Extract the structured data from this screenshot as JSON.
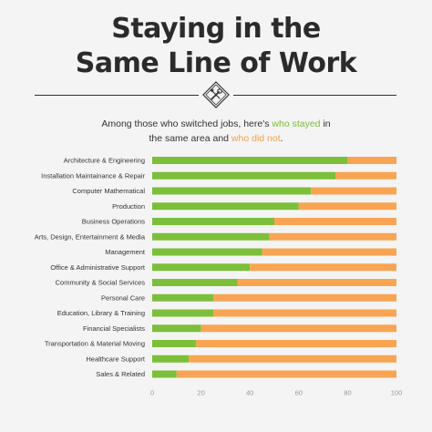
{
  "header": {
    "title_line1": "Staying in the",
    "title_line2": "Same Line of Work"
  },
  "subtitle": {
    "part1": "Among those who switched jobs, here's ",
    "stayed": "who stayed",
    "part2": " in",
    "part3": "the same area and ",
    "did_not": "who did not",
    "part4": "."
  },
  "icon": {
    "name": "tools-icon"
  },
  "colors": {
    "stayed": "#7cbf3a",
    "did_not": "#f9a453"
  },
  "chart_data": {
    "type": "bar",
    "orientation": "horizontal",
    "stacked": true,
    "categories": [
      "Architecture & Engineering",
      "Installation Maintainance & Repair",
      "Computer Mathematical",
      "Production",
      "Business Operations",
      "Arts, Design, Entertainment & Media",
      "Management",
      "Office & Administrative Support",
      "Community & Social Services",
      "Personal Care",
      "Education, Library & Training",
      "Financial Specialists",
      "Transportation & Material Moving",
      "Healthcare Support",
      "Sales & Related"
    ],
    "series": [
      {
        "name": "who stayed",
        "values": [
          80,
          75,
          65,
          60,
          50,
          48,
          45,
          40,
          35,
          25,
          25,
          20,
          18,
          15,
          10
        ]
      },
      {
        "name": "who did not",
        "values": [
          20,
          25,
          35,
          40,
          50,
          52,
          55,
          60,
          65,
          75,
          75,
          80,
          82,
          85,
          90
        ]
      }
    ],
    "xlim": [
      0,
      100
    ],
    "xticks": [
      0,
      20,
      40,
      60,
      80,
      100
    ],
    "grid": false,
    "legend": "none"
  }
}
